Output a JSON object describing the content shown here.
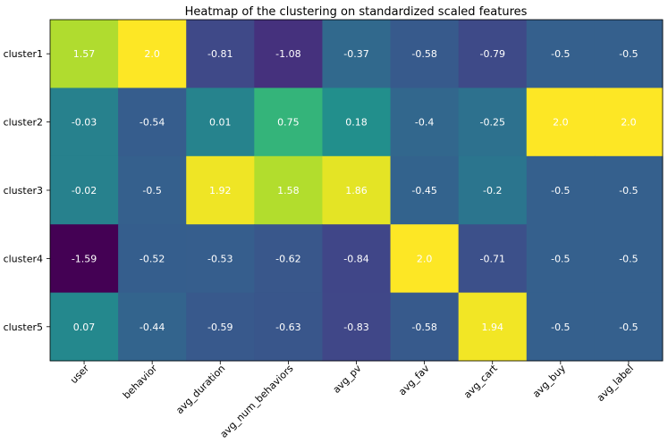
{
  "chart_data": {
    "type": "heatmap",
    "title": "Heatmap of the clustering on standardized scaled features",
    "xlabel": "",
    "ylabel": "",
    "x_categories": [
      "user",
      "behavior",
      "avg_duration",
      "avg_num_behaviors",
      "avg_pv",
      "avg_fav",
      "avg_cart",
      "avg_buy",
      "avg_label"
    ],
    "y_categories": [
      "cluster1",
      "cluster2",
      "cluster3",
      "cluster4",
      "cluster5"
    ],
    "values": [
      [
        1.57,
        2.0,
        -0.81,
        -1.08,
        -0.37,
        -0.58,
        -0.79,
        -0.5,
        -0.5
      ],
      [
        -0.03,
        -0.54,
        0.01,
        0.75,
        0.18,
        -0.4,
        -0.25,
        2.0,
        2.0
      ],
      [
        -0.02,
        -0.5,
        1.92,
        1.58,
        1.86,
        -0.45,
        -0.2,
        -0.5,
        -0.5
      ],
      [
        -1.59,
        -0.52,
        -0.53,
        -0.62,
        -0.84,
        2.0,
        -0.71,
        -0.5,
        -0.5
      ],
      [
        0.07,
        -0.44,
        -0.59,
        -0.63,
        -0.83,
        -0.58,
        1.94,
        -0.5,
        -0.5
      ]
    ],
    "labels": [
      [
        "1.57",
        "2.0",
        "-0.81",
        "-1.08",
        "-0.37",
        "-0.58",
        "-0.79",
        "-0.5",
        "-0.5"
      ],
      [
        "-0.03",
        "-0.54",
        "0.01",
        "0.75",
        "0.18",
        "-0.4",
        "-0.25",
        "2.0",
        "2.0"
      ],
      [
        "-0.02",
        "-0.5",
        "1.92",
        "1.58",
        "1.86",
        "-0.45",
        "-0.2",
        "-0.5",
        "-0.5"
      ],
      [
        "-1.59",
        "-0.52",
        "-0.53",
        "-0.62",
        "-0.84",
        "2.0",
        "-0.71",
        "-0.5",
        "-0.5"
      ],
      [
        "0.07",
        "-0.44",
        "-0.59",
        "-0.63",
        "-0.83",
        "-0.58",
        "1.94",
        "-0.5",
        "-0.5"
      ]
    ],
    "colormap": "viridis",
    "value_range": [
      -1.59,
      2.0
    ],
    "grid": false,
    "annotation_color": "#ffffff"
  }
}
